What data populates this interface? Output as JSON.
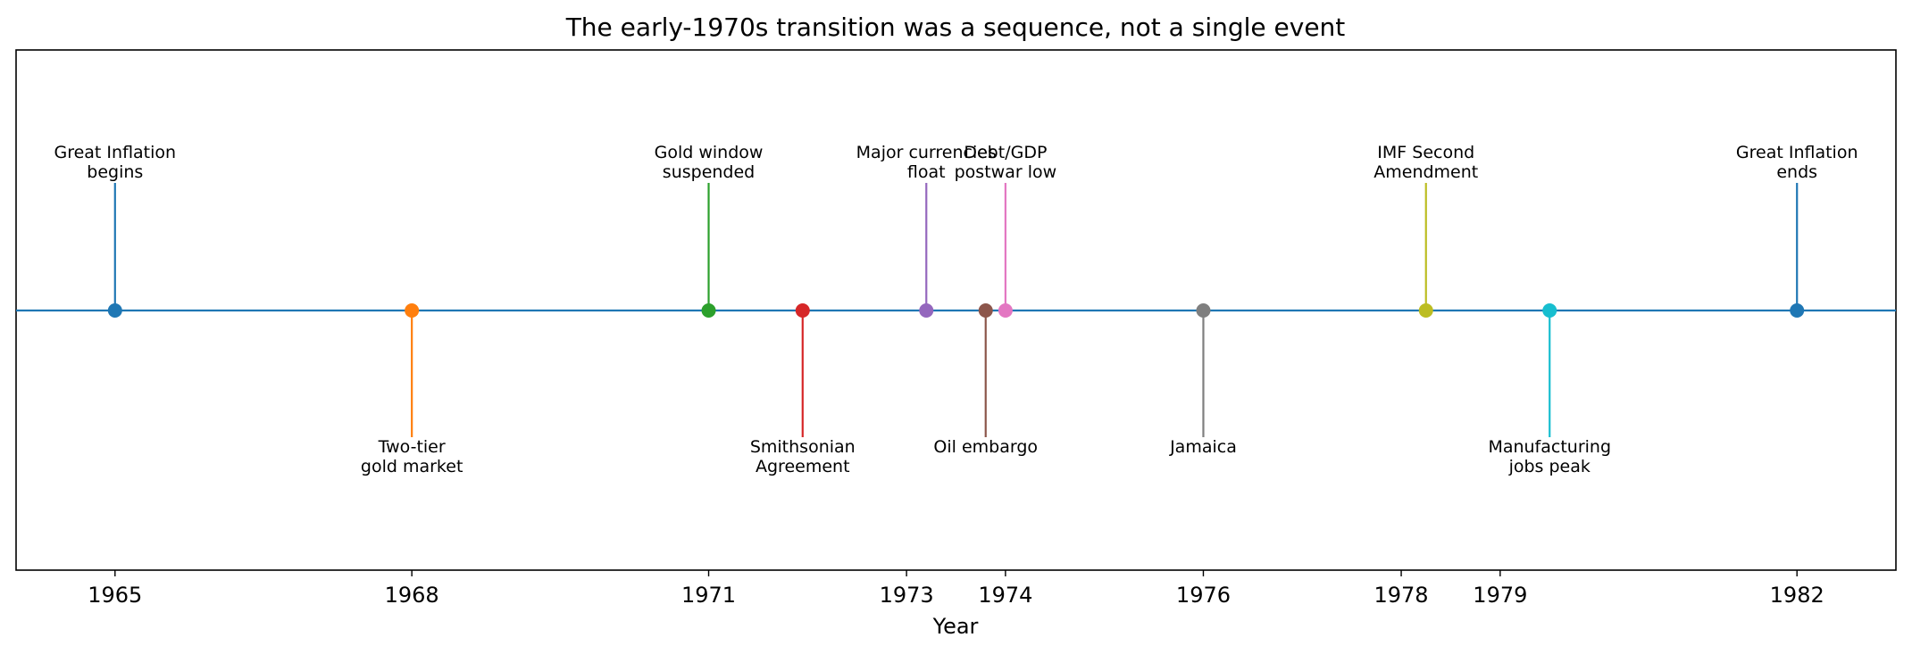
{
  "chart_data": {
    "type": "timeline",
    "title": "The early-1970s transition was a sequence, not a single event",
    "xlabel": "Year",
    "xlim": [
      1964.0,
      1983.0
    ],
    "xticks": [
      1965,
      1968,
      1971,
      1973,
      1974,
      1976,
      1978,
      1979,
      1982
    ],
    "grid": false,
    "events": [
      {
        "x": 1965.0,
        "label": [
          "Great Inflation",
          "begins"
        ],
        "side": "above",
        "color": "#1f77b4"
      },
      {
        "x": 1968.0,
        "label": [
          "Two-tier",
          "gold market"
        ],
        "side": "below",
        "color": "#ff7f0e"
      },
      {
        "x": 1971.0,
        "label": [
          "Gold window",
          "suspended"
        ],
        "side": "above",
        "color": "#2ca02c"
      },
      {
        "x": 1971.95,
        "label": [
          "Smithsonian",
          "Agreement"
        ],
        "side": "below",
        "color": "#d62728"
      },
      {
        "x": 1973.2,
        "label": [
          "Major currencies",
          "float"
        ],
        "side": "above",
        "color": "#9467bd"
      },
      {
        "x": 1973.8,
        "label": [
          "Oil embargo"
        ],
        "side": "below",
        "color": "#8c564b"
      },
      {
        "x": 1974.0,
        "label": [
          "Debt/GDP",
          "postwar low"
        ],
        "side": "above",
        "color": "#e377c2"
      },
      {
        "x": 1976.0,
        "label": [
          "Jamaica"
        ],
        "side": "below",
        "color": "#7f7f7f"
      },
      {
        "x": 1978.25,
        "label": [
          "IMF Second",
          "Amendment"
        ],
        "side": "above",
        "color": "#bcbd22"
      },
      {
        "x": 1979.5,
        "label": [
          "Manufacturing",
          "jobs peak"
        ],
        "side": "below",
        "color": "#17becf"
      },
      {
        "x": 1982.0,
        "label": [
          "Great Inflation",
          "ends"
        ],
        "side": "above",
        "color": "#1f77b4"
      }
    ],
    "baseline_color": "#1f77b4"
  }
}
